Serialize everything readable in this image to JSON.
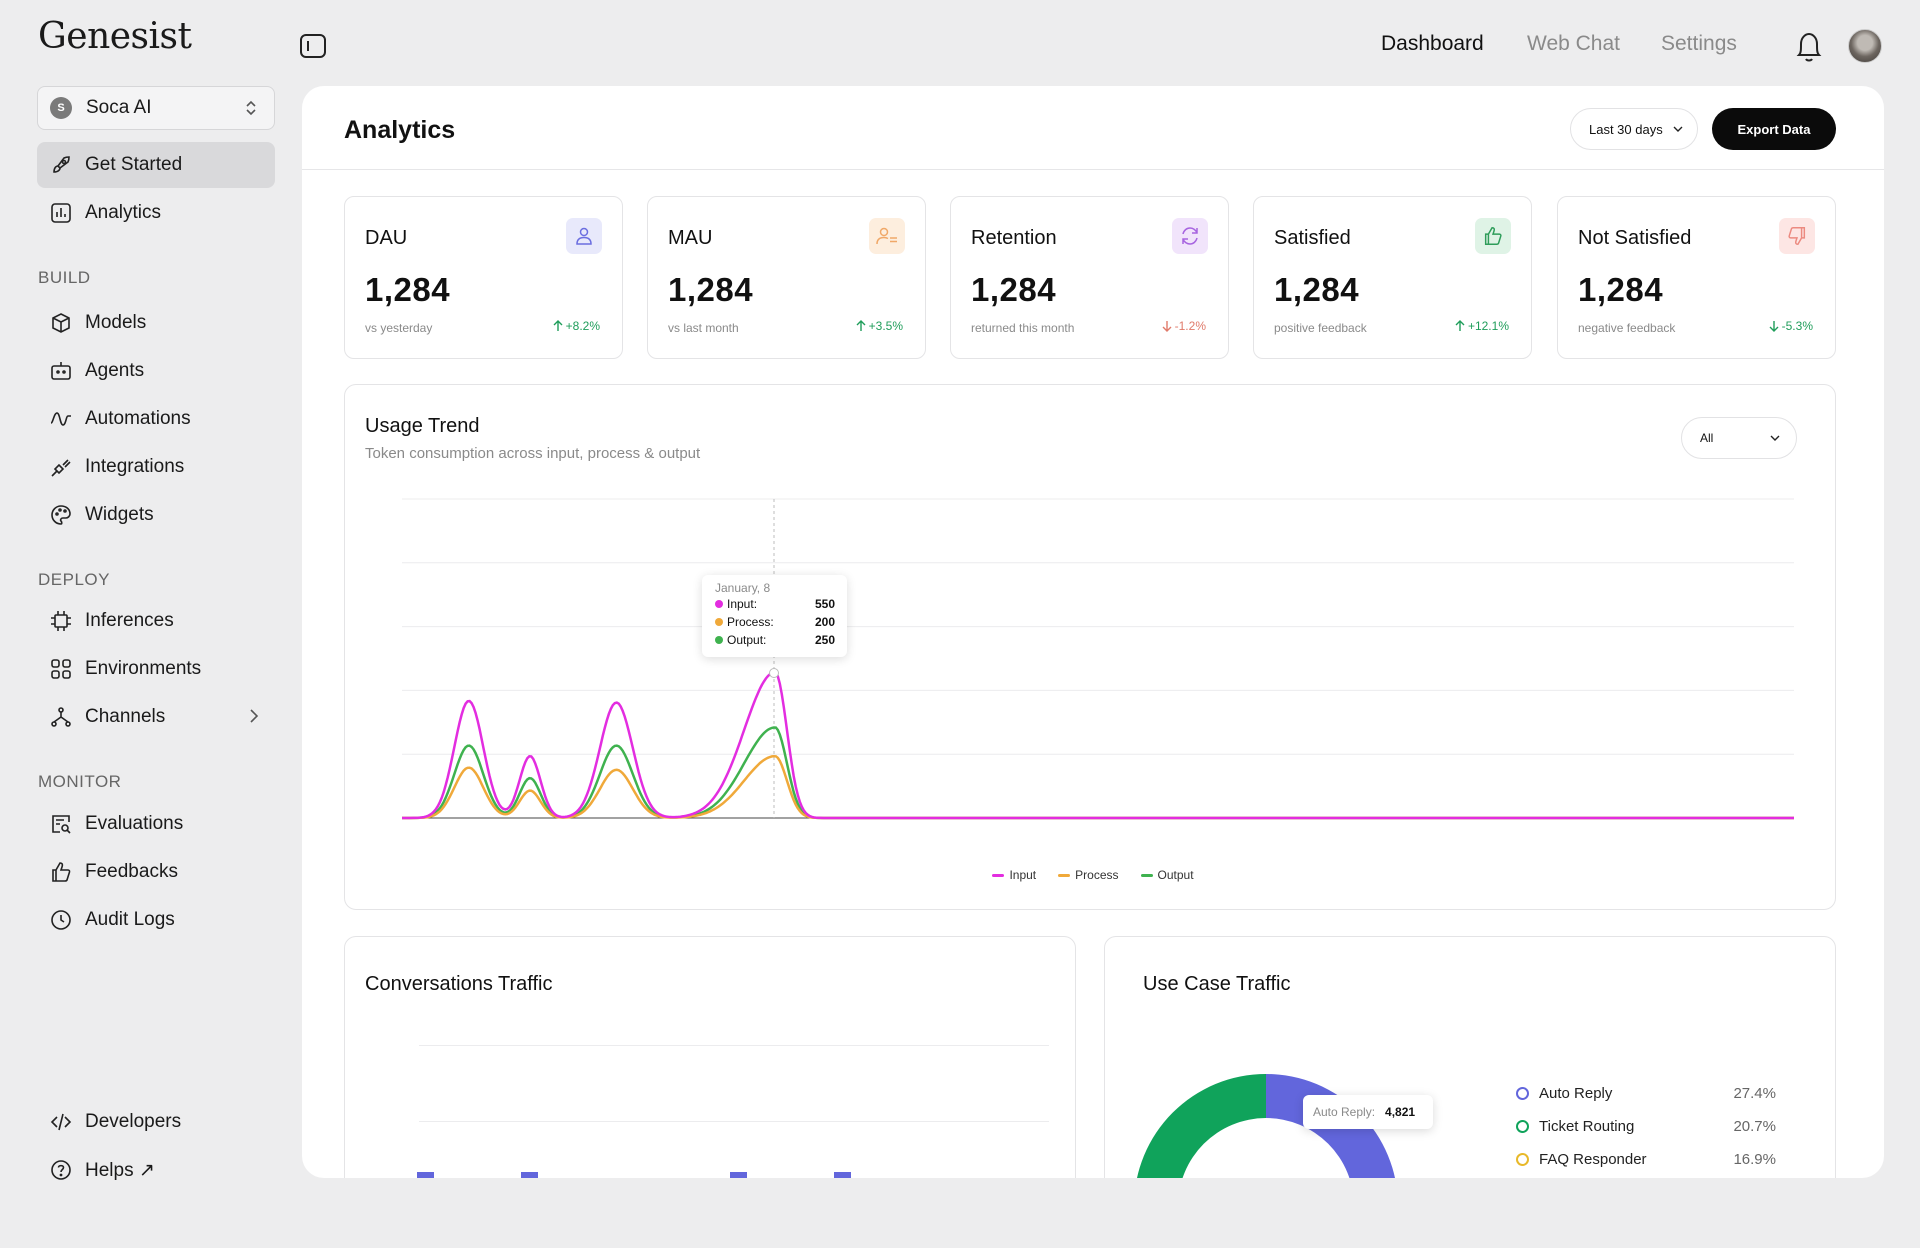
{
  "app": {
    "logo": "Genesist"
  },
  "workspace": {
    "initial": "S",
    "name": "Soca AI"
  },
  "sidebar": {
    "top_items": [
      {
        "label": "Get Started",
        "icon": "rocket-icon",
        "active": true
      },
      {
        "label": "Analytics",
        "icon": "bar-chart-icon",
        "active": false
      }
    ],
    "sections": [
      {
        "label": "BUILD",
        "items": [
          {
            "label": "Models",
            "icon": "cube-icon"
          },
          {
            "label": "Agents",
            "icon": "robot-icon"
          },
          {
            "label": "Automations",
            "icon": "wave-icon"
          },
          {
            "label": "Integrations",
            "icon": "plug-icon"
          },
          {
            "label": "Widgets",
            "icon": "palette-icon"
          }
        ]
      },
      {
        "label": "DEPLOY",
        "items": [
          {
            "label": "Inferences",
            "icon": "chip-icon"
          },
          {
            "label": "Environments",
            "icon": "grid-icon"
          },
          {
            "label": "Channels",
            "icon": "nodes-icon"
          }
        ]
      },
      {
        "label": "MONITOR",
        "items": [
          {
            "label": "Evaluations",
            "icon": "search-doc-icon"
          },
          {
            "label": "Feedbacks",
            "icon": "thumbs-up-icon"
          },
          {
            "label": "Audit Logs",
            "icon": "clock-icon"
          }
        ]
      }
    ],
    "bottom_items": [
      {
        "label": "Developers",
        "icon": "code-icon"
      },
      {
        "label": "Helps ↗",
        "icon": "help-icon"
      }
    ]
  },
  "topnav": {
    "dashboard": "Dashboard",
    "webchat": "Web Chat",
    "settings": "Settings"
  },
  "page": {
    "title": "Analytics",
    "range": "Last 30 days",
    "export": "Export Data"
  },
  "cards": [
    {
      "title": "DAU",
      "value": "1,284",
      "sub": "vs yesterday",
      "delta": "+8.2%",
      "trend": "up",
      "icon": "user-icon",
      "icon_bg": "#e8e9fb",
      "icon_color": "#6b6ee0"
    },
    {
      "title": "MAU",
      "value": "1,284",
      "sub": "vs last month",
      "delta": "+3.5%",
      "trend": "up",
      "icon": "users-icon",
      "icon_bg": "#fdeede",
      "icon_color": "#f0a868"
    },
    {
      "title": "Retention",
      "value": "1,284",
      "sub": "returned this month",
      "delta": "-1.2%",
      "trend": "down",
      "icon": "refresh-icon",
      "icon_bg": "#f1e4fb",
      "icon_color": "#a764e0"
    },
    {
      "title": "Satisfied",
      "value": "1,284",
      "sub": "positive feedback",
      "delta": "+12.1%",
      "trend": "up",
      "icon": "thumbs-up-icon",
      "icon_bg": "#dff3e6",
      "icon_color": "#2e9d5a"
    },
    {
      "title": "Not Satisfied",
      "value": "1,284",
      "sub": "negative feedback",
      "delta": "-5.3%",
      "trend": "up",
      "icon": "thumbs-down-icon",
      "icon_bg": "#fde6e4",
      "icon_color": "#ec8a80"
    }
  ],
  "usage": {
    "title": "Usage Trend",
    "subtitle": "Token consumption across input, process & output",
    "filter": "All",
    "tooltip": {
      "date": "January, 8",
      "rows": [
        {
          "label": "Input:",
          "value": "550",
          "color": "#e32de0"
        },
        {
          "label": "Process:",
          "value": "200",
          "color": "#f0a93a"
        },
        {
          "label": "Output:",
          "value": "250",
          "color": "#3fb24f"
        }
      ]
    }
  },
  "chart_data": {
    "type": "line",
    "series": [
      {
        "name": "Input",
        "color": "#e32de0",
        "peaks": [
          {
            "x": 0.048,
            "h": 0.367,
            "w": 0.0104
          },
          {
            "x": 0.092,
            "h": 0.194,
            "w": 0.0075
          },
          {
            "x": 0.154,
            "h": 0.362,
            "w": 0.0118
          },
          {
            "x": 0.268,
            "h": 0.457,
            "w": 0.0085
          }
        ]
      },
      {
        "name": "Process",
        "color": "#f0a93a",
        "peaks": [
          {
            "x": 0.048,
            "h": 0.158,
            "w": 0.0104
          },
          {
            "x": 0.092,
            "h": 0.086,
            "w": 0.0075
          },
          {
            "x": 0.154,
            "h": 0.151,
            "w": 0.0118
          },
          {
            "x": 0.268,
            "h": 0.194,
            "w": 0.0085
          }
        ]
      },
      {
        "name": "Output",
        "color": "#3fb24f",
        "peaks": [
          {
            "x": 0.048,
            "h": 0.227,
            "w": 0.0104
          },
          {
            "x": 0.092,
            "h": 0.125,
            "w": 0.0075
          },
          {
            "x": 0.154,
            "h": 0.227,
            "w": 0.0118
          },
          {
            "x": 0.268,
            "h": 0.284,
            "w": 0.0085
          }
        ]
      }
    ],
    "grid": true
  },
  "legend": [
    {
      "label": "Input",
      "color": "#e32de0"
    },
    {
      "label": "Process",
      "color": "#f0a93a"
    },
    {
      "label": "Output",
      "color": "#3fb24f"
    }
  ],
  "conversations": {
    "title": "Conversations Traffic",
    "bars": [
      0.03,
      0.03,
      0,
      0.03,
      0.03
    ]
  },
  "usecase": {
    "title": "Use Case Traffic",
    "tooltip_label": "Auto Reply:",
    "tooltip_value": "4,821",
    "items": [
      {
        "label": "Auto Reply",
        "pct": "27.4%",
        "color": "#6266dc"
      },
      {
        "label": "Ticket Routing",
        "pct": "20.7%",
        "color": "#10a35b"
      },
      {
        "label": "FAQ Responder",
        "pct": "16.9%",
        "color": "#e8b92a"
      }
    ]
  }
}
